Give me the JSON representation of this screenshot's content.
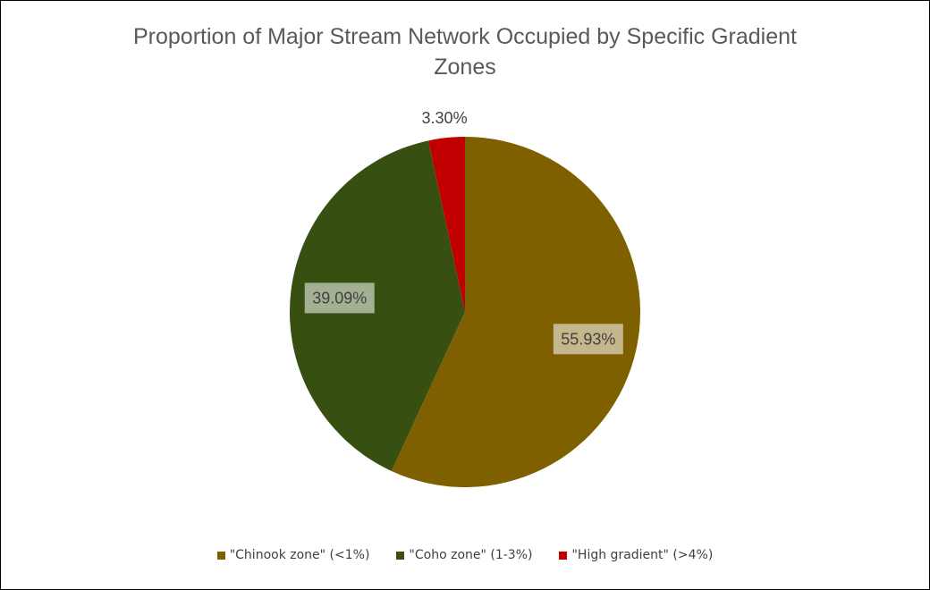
{
  "chart_data": {
    "type": "pie",
    "title_lines": [
      "Proportion of Major Stream Network Occupied by Specific Gradient",
      "Zones"
    ],
    "slices": [
      {
        "label": "\"Chinook zone\" (<1%)",
        "value": 55.93,
        "display": "55.93%",
        "color": "#7f6000"
      },
      {
        "label": "\"Coho zone\" (1-3%)",
        "value": 39.09,
        "display": "39.09%",
        "color": "#375012"
      },
      {
        "label": "\"High gradient\" (>4%)",
        "value": 3.3,
        "display": "3.30%",
        "color": "#c00000"
      }
    ],
    "legend_position": "bottom",
    "start_angle": "12 o'clock",
    "direction": "clockwise"
  }
}
